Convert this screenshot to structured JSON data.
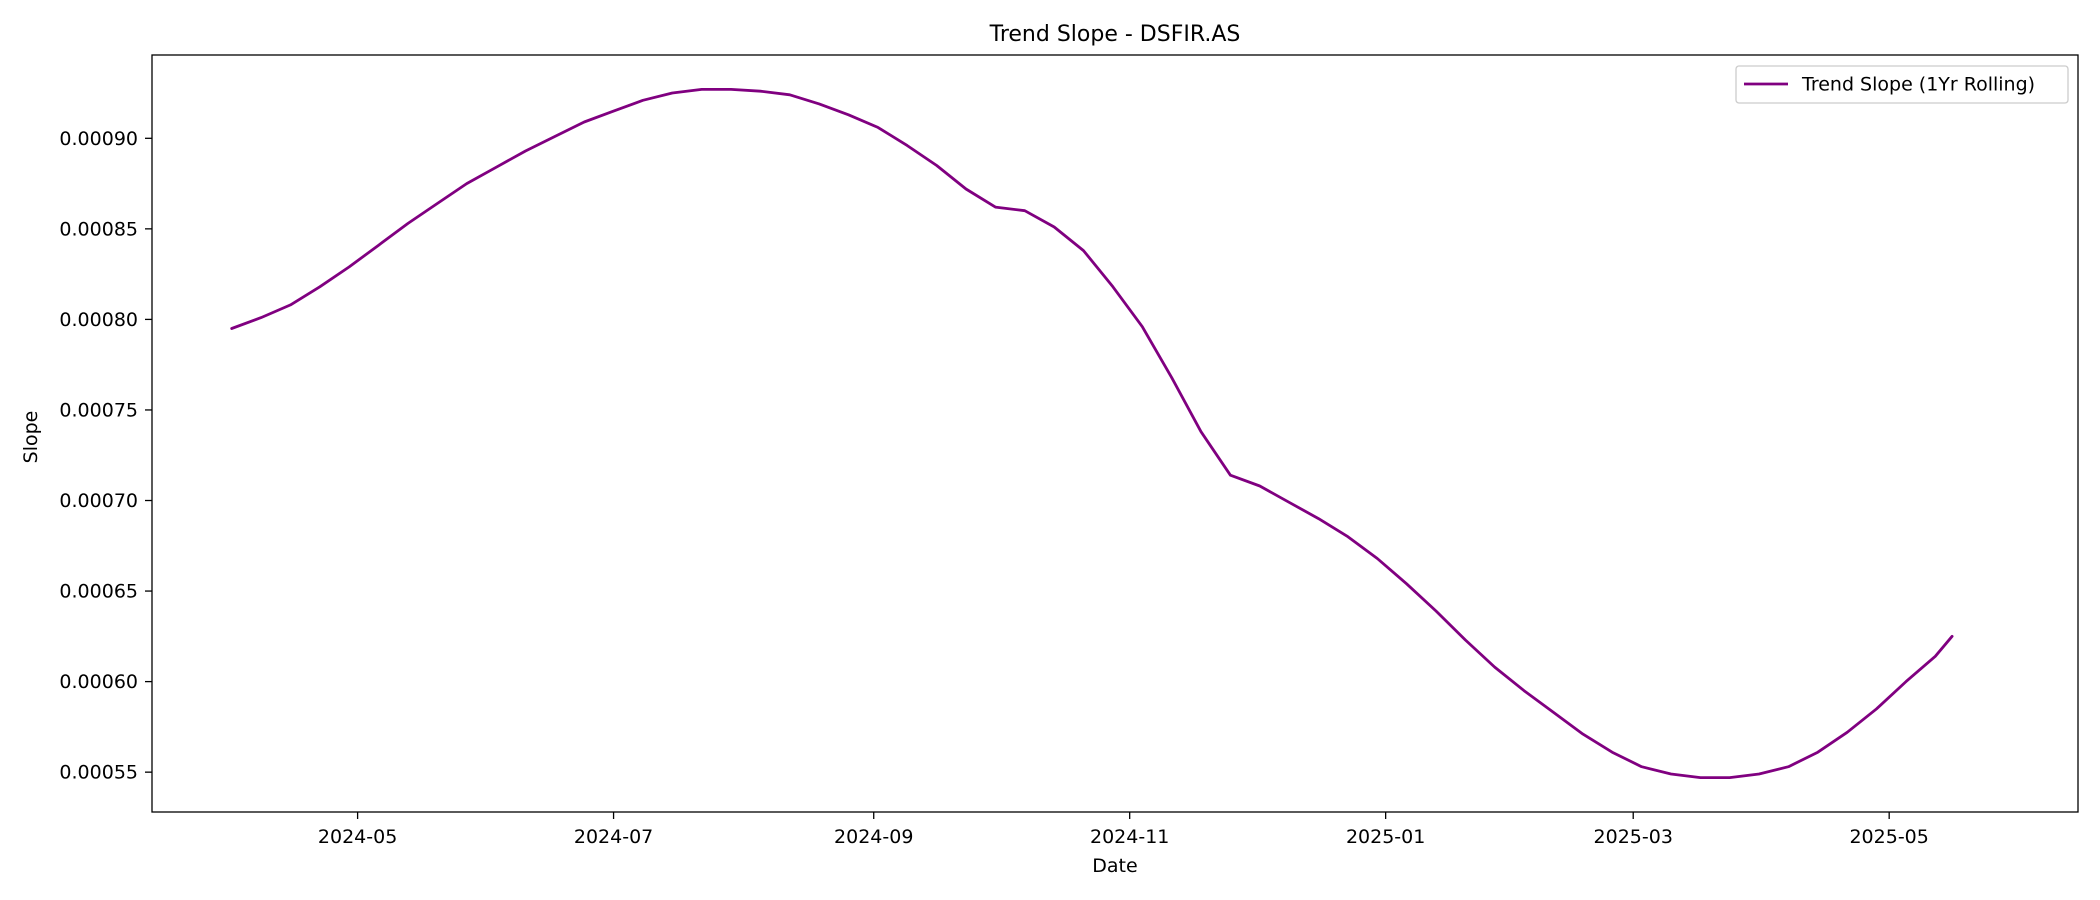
{
  "chart_data": {
    "type": "line",
    "title": "Trend Slope - DSFIR.AS",
    "xlabel": "Date",
    "ylabel": "Slope",
    "xlim": [
      "2024-03-13",
      "2025-06-15"
    ],
    "ylim": [
      0.000528,
      0.000946
    ],
    "grid": false,
    "legend_position": "upper right",
    "x_ticks": [
      "2024-05-01",
      "2024-07-01",
      "2024-09-01",
      "2024-11-01",
      "2025-01-01",
      "2025-03-01",
      "2025-05-01"
    ],
    "x_tick_labels": [
      "2024-05",
      "2024-07",
      "2024-09",
      "2024-11",
      "2025-01",
      "2025-03",
      "2025-05"
    ],
    "y_ticks": [
      0.00055,
      0.0006,
      0.00065,
      0.0007,
      0.00075,
      0.0008,
      0.00085,
      0.0009
    ],
    "y_tick_labels": [
      "0.00055",
      "0.00060",
      "0.00065",
      "0.00070",
      "0.00075",
      "0.00080",
      "0.00085",
      "0.00090"
    ],
    "series": [
      {
        "name": "Trend Slope (1Yr Rolling)",
        "color": "#800080",
        "x": [
          "2024-04-01",
          "2024-04-08",
          "2024-04-15",
          "2024-04-22",
          "2024-04-29",
          "2024-05-06",
          "2024-05-13",
          "2024-05-20",
          "2024-05-27",
          "2024-06-03",
          "2024-06-10",
          "2024-06-17",
          "2024-06-24",
          "2024-07-01",
          "2024-07-08",
          "2024-07-15",
          "2024-07-22",
          "2024-07-29",
          "2024-08-05",
          "2024-08-12",
          "2024-08-19",
          "2024-08-26",
          "2024-09-02",
          "2024-09-09",
          "2024-09-16",
          "2024-09-23",
          "2024-09-30",
          "2024-10-07",
          "2024-10-14",
          "2024-10-21",
          "2024-10-28",
          "2024-11-04",
          "2024-11-11",
          "2024-11-18",
          "2024-11-25",
          "2024-12-02",
          "2024-12-09",
          "2024-12-16",
          "2024-12-23",
          "2024-12-30",
          "2025-01-06",
          "2025-01-13",
          "2025-01-20",
          "2025-01-27",
          "2025-02-03",
          "2025-02-10",
          "2025-02-17",
          "2025-02-24",
          "2025-03-03",
          "2025-03-10",
          "2025-03-17",
          "2025-03-24",
          "2025-03-31",
          "2025-04-07",
          "2025-04-14",
          "2025-04-21",
          "2025-04-28",
          "2025-05-05",
          "2025-05-12",
          "2025-05-16"
        ],
        "values": [
          0.000795,
          0.000801,
          0.000808,
          0.000818,
          0.000829,
          0.000841,
          0.000853,
          0.000864,
          0.000875,
          0.000884,
          0.000893,
          0.000901,
          0.000909,
          0.000915,
          0.000921,
          0.000925,
          0.000927,
          0.000927,
          0.000926,
          0.000924,
          0.000919,
          0.000913,
          0.000906,
          0.000896,
          0.000885,
          0.000872,
          0.000862,
          0.00086,
          0.000851,
          0.000838,
          0.000818,
          0.000796,
          0.000768,
          0.000738,
          0.000714,
          0.000708,
          0.000699,
          0.00069,
          0.00068,
          0.000668,
          0.000654,
          0.000639,
          0.000623,
          0.000608,
          0.000595,
          0.000583,
          0.000571,
          0.000561,
          0.000553,
          0.000549,
          0.000547,
          0.000547,
          0.000549,
          0.000553,
          0.000561,
          0.000572,
          0.000585,
          0.0006,
          0.000614,
          0.000625
        ]
      }
    ]
  }
}
